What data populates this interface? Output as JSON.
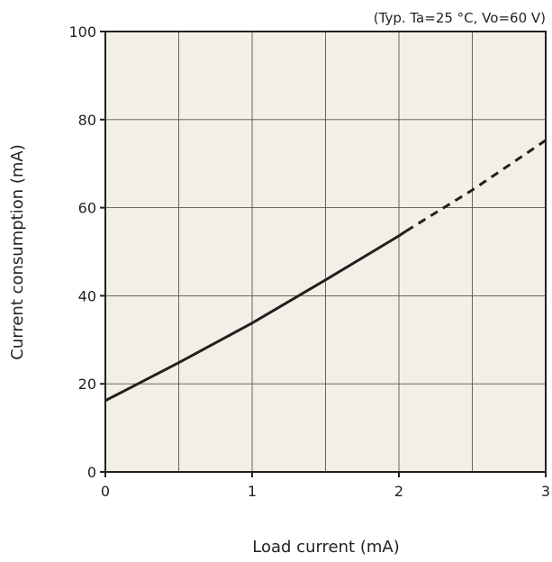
{
  "chart_data": {
    "type": "line",
    "title": "",
    "annotation": "(Typ. Ta=25 °C, Vo=60 V)",
    "xlabel": "Load current (mA)",
    "ylabel": "Current consumption (mA)",
    "xlim": [
      0,
      3
    ],
    "ylim": [
      0,
      100
    ],
    "x_ticks": [
      0,
      1,
      2,
      3
    ],
    "y_ticks": [
      0,
      20,
      40,
      60,
      80,
      100
    ],
    "x_grid": [
      0.5,
      1,
      1.5,
      2,
      2.5
    ],
    "y_grid": [
      20,
      40,
      60,
      80
    ],
    "grid": true,
    "colors": {
      "plot_background": "#f2f0e6",
      "line": "#231f20",
      "grid": "#555555"
    },
    "series": [
      {
        "style": "solid",
        "x": [
          0,
          0.5,
          1.0,
          1.5,
          2.0,
          2.05
        ],
        "y": [
          16.2,
          24.8,
          33.8,
          43.6,
          53.6,
          54.7
        ]
      },
      {
        "style": "dashed",
        "x": [
          2.05,
          2.5,
          3.0
        ],
        "y": [
          54.7,
          64.0,
          75.3
        ]
      }
    ]
  }
}
